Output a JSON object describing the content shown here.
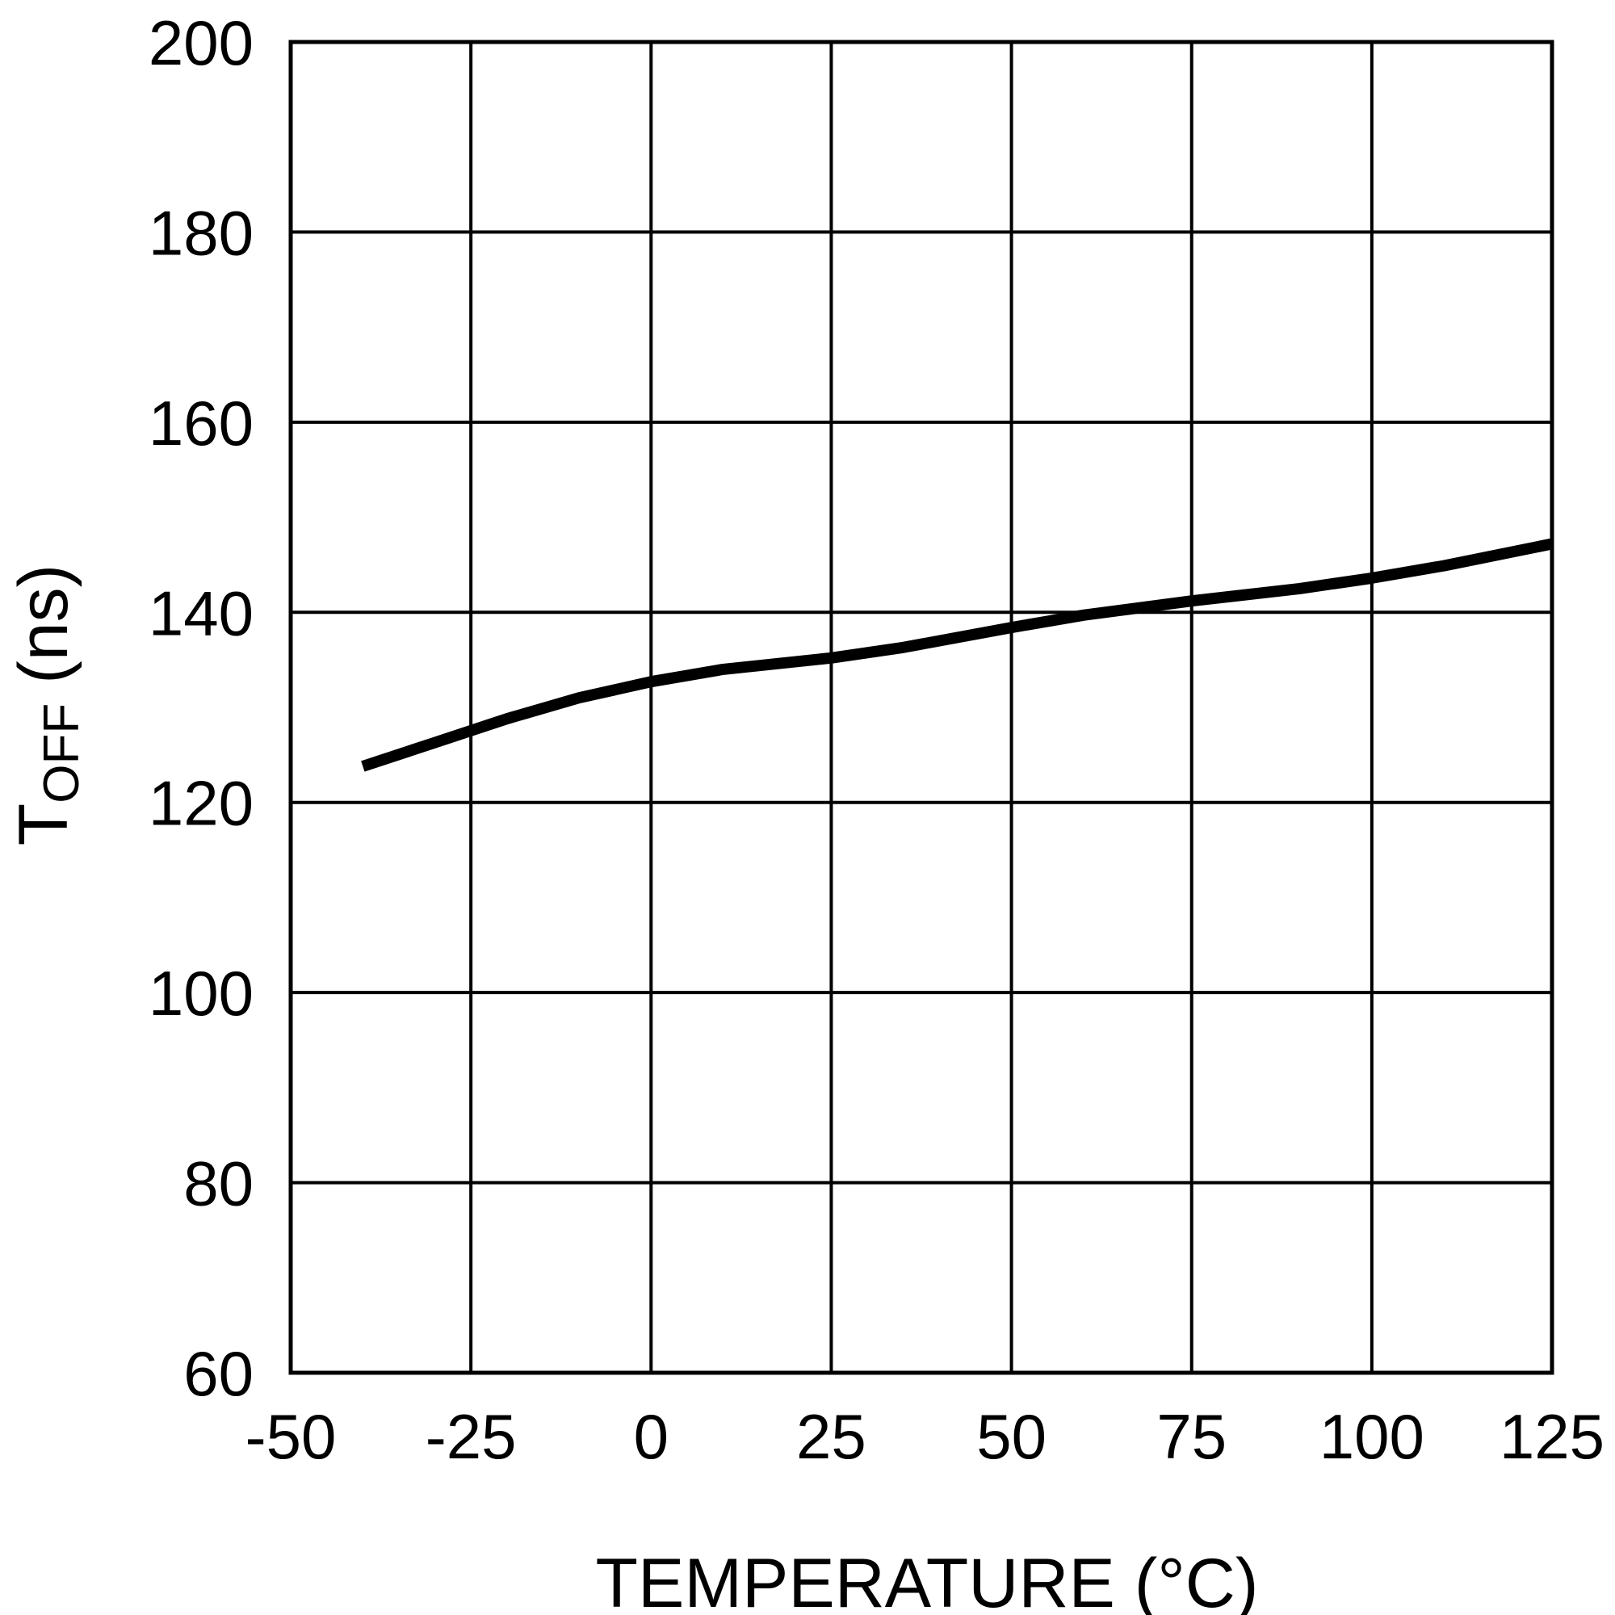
{
  "chart_data": {
    "type": "line",
    "xlabel": "TEMPERATURE (°C)",
    "ylabel": {
      "main": "T",
      "subscript": "OFF",
      "unit": " (ns)"
    },
    "xlim": [
      -50,
      125
    ],
    "ylim": [
      60,
      200
    ],
    "x_ticks": [
      -50,
      -25,
      0,
      25,
      50,
      75,
      100,
      125
    ],
    "y_ticks": [
      60,
      80,
      100,
      120,
      140,
      160,
      180,
      200
    ],
    "grid": true,
    "colors": {
      "line": "#000000",
      "grid": "#000000",
      "background": "#ffffff"
    },
    "series": [
      {
        "x": [
          -40,
          -30,
          -20,
          -10,
          0,
          10,
          25,
          35,
          50,
          60,
          75,
          90,
          100,
          110,
          125
        ],
        "y": [
          123.8,
          126.3,
          128.8,
          131.0,
          132.7,
          134.0,
          135.2,
          136.3,
          138.4,
          139.7,
          141.2,
          142.5,
          143.6,
          144.9,
          147.2
        ]
      }
    ]
  }
}
